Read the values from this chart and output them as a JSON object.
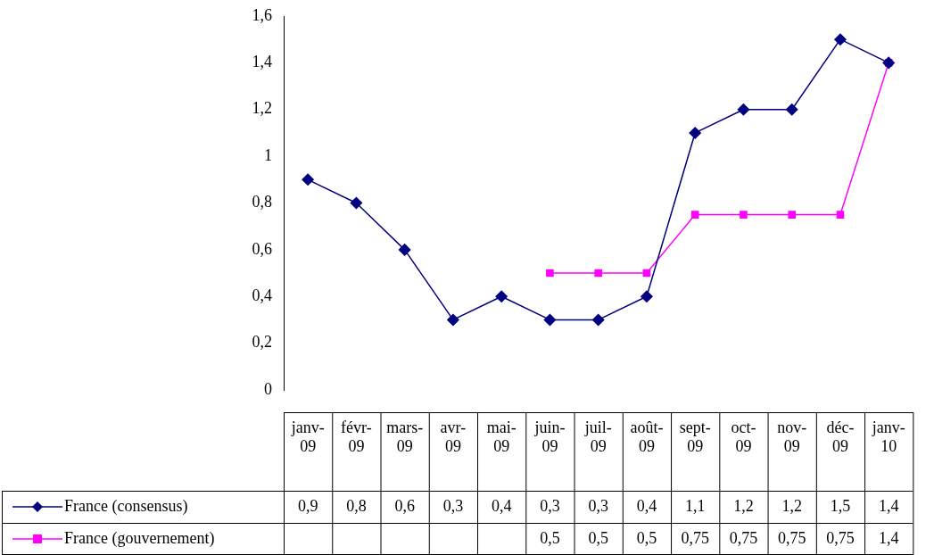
{
  "chart_data": {
    "type": "line",
    "categories": [
      "janv-09",
      "févr-09",
      "mars-09",
      "avr-09",
      "mai-09",
      "juin-09",
      "juil-09",
      "août-09",
      "sept-09",
      "oct-09",
      "nov-09",
      "déc-09",
      "janv-10"
    ],
    "series": [
      {
        "name": "France (consensus)",
        "color": "#000080",
        "marker": "diamond",
        "values": [
          0.9,
          0.8,
          0.6,
          0.3,
          0.4,
          0.3,
          0.3,
          0.4,
          1.1,
          1.2,
          1.2,
          1.5,
          1.4
        ],
        "value_labels": [
          "0,9",
          "0,8",
          "0,6",
          "0,3",
          "0,4",
          "0,3",
          "0,3",
          "0,4",
          "1,1",
          "1,2",
          "1,2",
          "1,5",
          "1,4"
        ]
      },
      {
        "name": "France (gouvernement)",
        "color": "#ff00ff",
        "marker": "square",
        "values": [
          null,
          null,
          null,
          null,
          null,
          0.5,
          0.5,
          0.5,
          0.75,
          0.75,
          0.75,
          0.75,
          1.4
        ],
        "value_labels": [
          null,
          null,
          null,
          null,
          null,
          "0,5",
          "0,5",
          "0,5",
          "0,75",
          "0,75",
          "0,75",
          "0,75",
          "1,4"
        ]
      }
    ],
    "ylim": [
      0,
      1.6
    ],
    "yticks": [
      {
        "value": 0,
        "label": "0"
      },
      {
        "value": 0.2,
        "label": "0,2"
      },
      {
        "value": 0.4,
        "label": "0,4"
      },
      {
        "value": 0.6,
        "label": "0,6"
      },
      {
        "value": 0.8,
        "label": "0,8"
      },
      {
        "value": 1,
        "label": "1"
      },
      {
        "value": 1.2,
        "label": "1,2"
      },
      {
        "value": 1.4,
        "label": "1,4"
      },
      {
        "value": 1.6,
        "label": "1,6"
      }
    ],
    "grid": false,
    "legend": "bottom",
    "line_style": "solid"
  }
}
